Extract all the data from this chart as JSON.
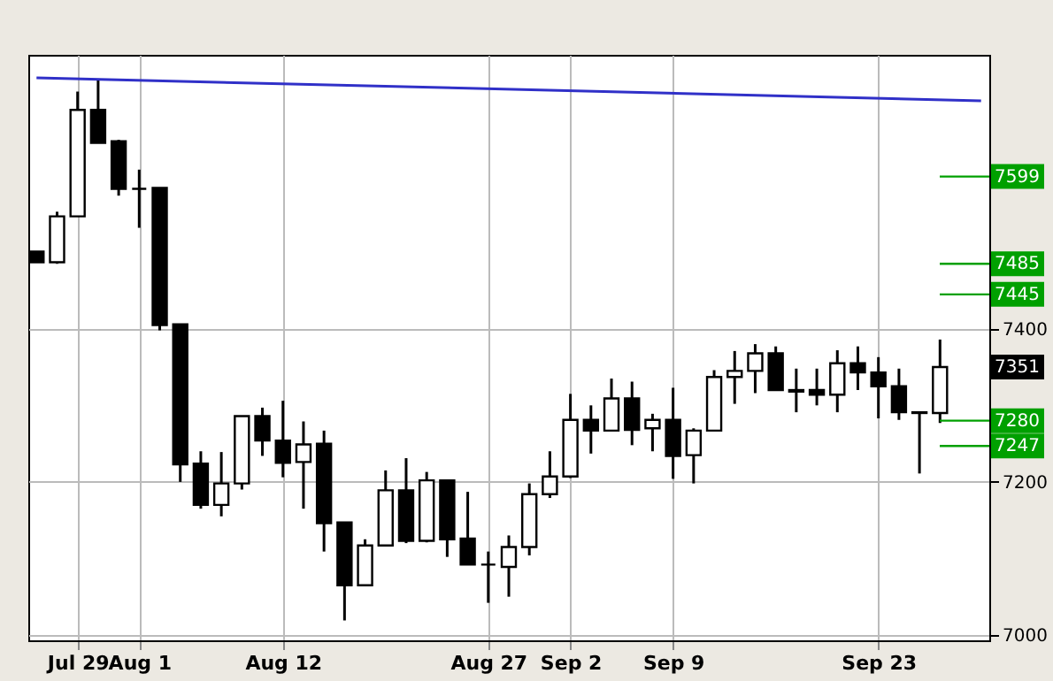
{
  "chart_data": {
    "type": "candlestick",
    "categories": [
      null,
      null,
      "Jul 29",
      null,
      null,
      "Aug 1",
      null,
      null,
      null,
      null,
      null,
      null,
      "Aug 12",
      null,
      null,
      null,
      null,
      null,
      null,
      null,
      null,
      null,
      "Aug 27",
      null,
      null,
      null,
      "Sep 2",
      null,
      null,
      null,
      null,
      "Sep 9",
      null,
      null,
      null,
      null,
      null,
      null,
      null,
      null,
      null,
      "Sep 23",
      null,
      null,
      null,
      null,
      null
    ],
    "ohlc": [
      [
        7501,
        7501,
        7487,
        7487
      ],
      [
        7487,
        7553,
        7485,
        7547
      ],
      [
        7547,
        7710,
        7547,
        7686
      ],
      [
        7686,
        7726,
        7643,
        7643
      ],
      [
        7645,
        7647,
        7574,
        7583
      ],
      [
        7583,
        7608,
        7532,
        7583
      ],
      [
        7584,
        7584,
        7398,
        7405
      ],
      [
        7406,
        7406,
        7200,
        7223
      ],
      [
        7224,
        7240,
        7165,
        7170
      ],
      [
        7170,
        7239,
        7155,
        7198
      ],
      [
        7198,
        7286,
        7190,
        7286
      ],
      [
        7286,
        7297,
        7234,
        7254
      ],
      [
        7254,
        7306,
        7206,
        7225
      ],
      [
        7226,
        7279,
        7165,
        7249
      ],
      [
        7250,
        7267,
        7109,
        7146
      ],
      [
        7147,
        7147,
        7019,
        7065
      ],
      [
        7065,
        7125,
        7065,
        7117
      ],
      [
        7117,
        7215,
        7117,
        7189
      ],
      [
        7189,
        7231,
        7120,
        7123
      ],
      [
        7123,
        7213,
        7121,
        7202
      ],
      [
        7202,
        7202,
        7102,
        7125
      ],
      [
        7126,
        7187,
        7092,
        7092
      ],
      [
        7092,
        7109,
        7042,
        7092
      ],
      [
        7089,
        7130,
        7050,
        7115
      ],
      [
        7115,
        7198,
        7104,
        7184
      ],
      [
        7184,
        7240,
        7179,
        7207
      ],
      [
        7207,
        7315,
        7205,
        7281
      ],
      [
        7281,
        7300,
        7237,
        7267
      ],
      [
        7267,
        7335,
        7267,
        7309
      ],
      [
        7309,
        7331,
        7248,
        7268
      ],
      [
        7270,
        7289,
        7240,
        7281
      ],
      [
        7281,
        7323,
        7204,
        7234
      ],
      [
        7235,
        7270,
        7198,
        7267
      ],
      [
        7267,
        7346,
        7267,
        7337
      ],
      [
        7337,
        7371,
        7302,
        7345
      ],
      [
        7345,
        7380,
        7316,
        7368
      ],
      [
        7368,
        7377,
        7320,
        7320
      ],
      [
        7320,
        7348,
        7291,
        7318
      ],
      [
        7320,
        7348,
        7300,
        7314
      ],
      [
        7314,
        7372,
        7291,
        7355
      ],
      [
        7355,
        7377,
        7320,
        7343
      ],
      [
        7343,
        7363,
        7283,
        7325
      ],
      [
        7325,
        7348,
        7281,
        7291
      ],
      [
        7291,
        7291,
        7211,
        7290
      ],
      [
        7290,
        7386,
        7277,
        7350
      ],
      null,
      null
    ],
    "series": [
      {
        "type": "line",
        "color": "#3030c8",
        "values": [
          7728,
          null,
          null,
          null,
          null,
          null,
          null,
          null,
          null,
          null,
          null,
          null,
          null,
          null,
          null,
          null,
          null,
          null,
          null,
          null,
          null,
          null,
          null,
          null,
          null,
          null,
          null,
          null,
          null,
          null,
          null,
          null,
          null,
          null,
          null,
          null,
          null,
          null,
          null,
          null,
          null,
          null,
          null,
          null,
          null,
          null,
          7698
        ]
      }
    ],
    "ylim": [
      6993,
      7758
    ],
    "yticks": [
      7000,
      7200,
      7400
    ],
    "grid": true,
    "ref_lines": [
      {
        "axis": "y",
        "value": 7599,
        "label": "7599",
        "color": "#00a000"
      },
      {
        "axis": "y",
        "value": 7485,
        "label": "7485",
        "color": "#00a000"
      },
      {
        "axis": "y",
        "value": 7445,
        "label": "7445",
        "color": "#00a000"
      },
      {
        "axis": "y",
        "value": 7280,
        "label": "7280",
        "color": "#00a000"
      },
      {
        "axis": "y",
        "value": 7247,
        "label": "7247",
        "color": "#00a000"
      }
    ],
    "annotations": [
      "7351"
    ]
  }
}
